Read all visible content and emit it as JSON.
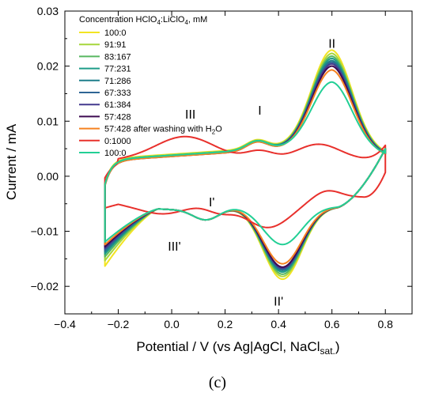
{
  "chart_data": {
    "type": "line",
    "xlabel": "Potential / V (vs Ag|AgCl, NaCl",
    "xlabel_sub": "sat.",
    "xlabel_end": ")",
    "ylabel": "Current / mA",
    "xlim": [
      -0.4,
      0.9
    ],
    "ylim": [
      -0.025,
      0.03
    ],
    "xticks": [
      -0.4,
      -0.2,
      0.0,
      0.2,
      0.4,
      0.6,
      0.8
    ],
    "xtick_labels": [
      "−0.4",
      "−0.2",
      "0.0",
      "0.2",
      "0.4",
      "0.6",
      "0.8"
    ],
    "yticks": [
      -0.02,
      -0.01,
      0.0,
      0.01,
      0.02,
      0.03
    ],
    "ytick_labels": [
      "−0.02",
      "−0.01",
      "0.00",
      "0.01",
      "0.02",
      "0.03"
    ],
    "grid": false,
    "legend_position": "top-left",
    "legend_title_parts": [
      "Concentration HClO",
      "4",
      ":LiClO",
      "4",
      ", mM"
    ],
    "annotations": [
      {
        "text": "II",
        "x": 0.6,
        "y": 0.0233
      },
      {
        "text": "III",
        "x": 0.07,
        "y": 0.0105
      },
      {
        "text": "I",
        "x": 0.33,
        "y": 0.0112
      },
      {
        "text": "I'",
        "x": 0.15,
        "y": -0.0055
      },
      {
        "text": "III'",
        "x": 0.01,
        "y": -0.0135
      },
      {
        "text": "II'",
        "x": 0.4,
        "y": -0.0235
      }
    ],
    "panel_label": "(c)",
    "series": [
      {
        "name": "100:0",
        "color": "#f2e422",
        "type": "normal",
        "peak_a": 0.0218,
        "peak_c": -0.0206,
        "ends": [
          -0.0163,
          0.0032
        ],
        "low_a": 0.0018,
        "low_b": -0.0012
      },
      {
        "name": "91:91",
        "color": "#a6d63c",
        "type": "normal",
        "peak_a": 0.0213,
        "peak_c": -0.0201,
        "ends": [
          -0.0153,
          0.0031
        ],
        "low_a": 0.0018,
        "low_b": -0.0012
      },
      {
        "name": "83:167",
        "color": "#58b760",
        "type": "normal",
        "peak_a": 0.0209,
        "peak_c": -0.0197,
        "ends": [
          -0.0146,
          0.003
        ],
        "low_a": 0.0018,
        "low_b": -0.0012
      },
      {
        "name": "77:231",
        "color": "#1e9c88",
        "type": "normal",
        "peak_a": 0.0205,
        "peak_c": -0.0193,
        "ends": [
          -0.0141,
          0.003
        ],
        "low_a": 0.0018,
        "low_b": -0.0012
      },
      {
        "name": "71:286",
        "color": "#1f7f8b",
        "type": "normal",
        "peak_a": 0.0202,
        "peak_c": -0.019,
        "ends": [
          -0.0137,
          0.0029
        ],
        "low_a": 0.0018,
        "low_b": -0.0012
      },
      {
        "name": "67:333",
        "color": "#2e6594",
        "type": "normal",
        "peak_a": 0.0199,
        "peak_c": -0.0188,
        "ends": [
          -0.0134,
          0.0029
        ],
        "low_a": 0.0018,
        "low_b": -0.0012
      },
      {
        "name": "61:384",
        "color": "#43398d",
        "type": "normal",
        "peak_a": 0.0196,
        "peak_c": -0.0186,
        "ends": [
          -0.0131,
          0.0029
        ],
        "low_a": 0.0018,
        "low_b": -0.0012
      },
      {
        "name": "57:428",
        "color": "#3e0a52",
        "type": "normal",
        "peak_a": 0.0193,
        "peak_c": -0.0184,
        "ends": [
          -0.0128,
          0.0028
        ],
        "low_a": 0.0018,
        "low_b": -0.0012
      },
      {
        "name": "57:428 after washing with H",
        "name_sub": "2",
        "name_end": "O",
        "color": "#f58220",
        "type": "normal",
        "peak_a": 0.0186,
        "peak_c": -0.0178,
        "ends": [
          -0.0124,
          0.0028
        ],
        "low_a": 0.0018,
        "low_b": -0.0012
      },
      {
        "name": "0:1000",
        "color": "#e8302c",
        "type": "lithium",
        "peak_a": 0.0088,
        "peak_c": -0.0094,
        "ends": [
          -0.007,
          0.0032
        ],
        "low_a": 0.0066,
        "low_b": -0.0058
      },
      {
        "name": "100:0",
        "color": "#22cf95",
        "type": "normal",
        "peak_a": 0.0162,
        "peak_c": -0.0143,
        "ends": [
          -0.0119,
          0.003
        ],
        "low_a": 0.0018,
        "low_b": -0.0012
      }
    ]
  }
}
